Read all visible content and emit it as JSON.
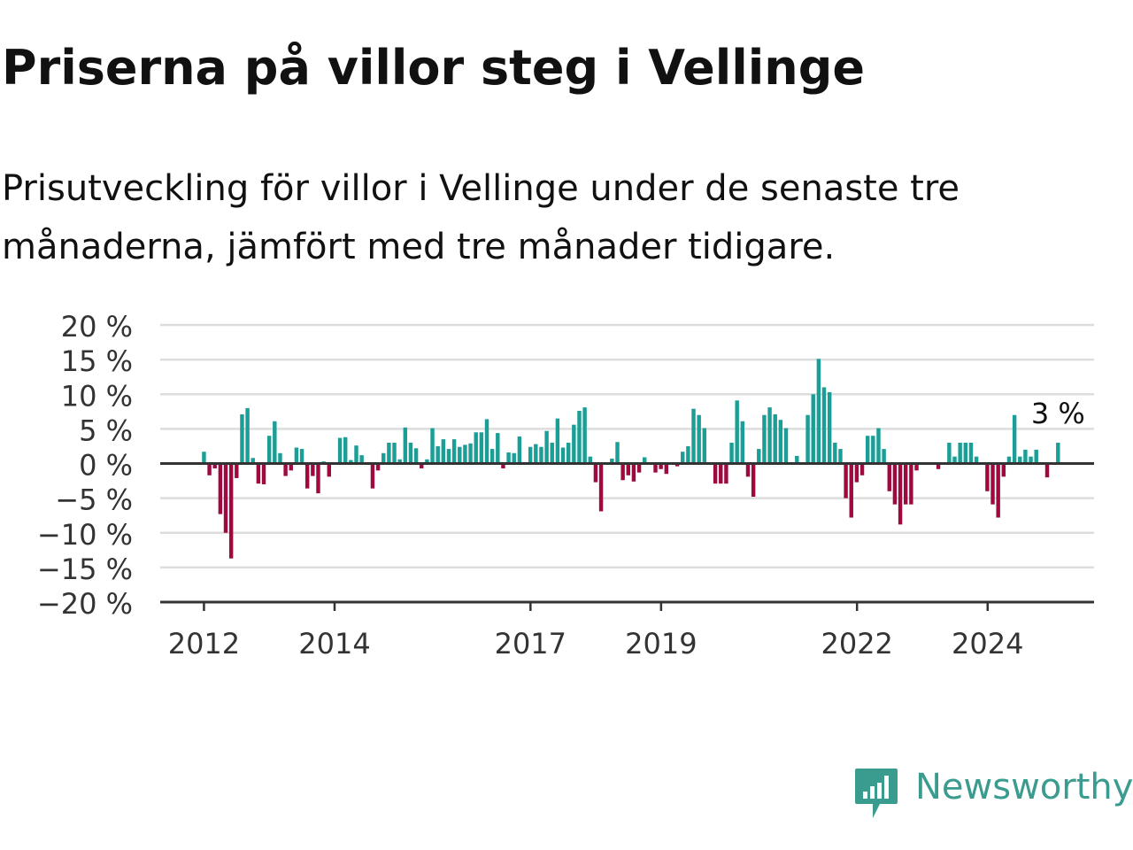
{
  "title": "Priserna på villor steg i Vellinge",
  "subtitle": "Prisutveckling för villor i Vellinge under de senaste tre månaderna, jämfört med tre månader tidigare.",
  "brand": {
    "name": "Newsworthy",
    "color": "#3a9c8f",
    "icon": "newsworthy-logo-icon"
  },
  "colors": {
    "positive": "#1a9e95",
    "negative": "#9e0a3f",
    "grid": "#dddddd",
    "axis": "#333333"
  },
  "chart_data": {
    "type": "bar",
    "y_ticks": [
      "20 %",
      "15 %",
      "10 %",
      "5 %",
      "0 %",
      "−5 %",
      "−10 %",
      "−15 %",
      "−20 %"
    ],
    "x_ticks": [
      {
        "label": "2012",
        "x": 2012
      },
      {
        "label": "2014",
        "x": 2014
      },
      {
        "label": "2017",
        "x": 2017
      },
      {
        "label": "2019",
        "x": 2019
      },
      {
        "label": "2022",
        "x": 2022
      },
      {
        "label": "2024",
        "x": 2024
      }
    ],
    "ylim": [
      -20,
      20
    ],
    "xlim": [
      2011.33,
      2025.63
    ],
    "x_start": 2012.0,
    "x_step": 0.0833,
    "annotation": {
      "label": "3 %",
      "value": 3
    },
    "values": [
      1.7,
      -1.7,
      -0.7,
      -7.3,
      -10.0,
      -13.7,
      -2.1,
      7.1,
      8.0,
      0.8,
      -2.9,
      -3.0,
      4.0,
      6.1,
      1.5,
      -1.8,
      -1.0,
      2.3,
      2.1,
      -3.6,
      -1.8,
      -4.3,
      0.3,
      -1.9,
      0.2,
      3.7,
      3.8,
      0.5,
      2.6,
      1.2,
      0,
      -3.6,
      -1.0,
      1.5,
      3.0,
      3.0,
      0.6,
      5.2,
      3.0,
      2.2,
      -0.7,
      0.6,
      5.1,
      2.5,
      3.5,
      2.1,
      3.5,
      2.4,
      2.7,
      2.9,
      4.5,
      4.5,
      6.4,
      2.1,
      4.4,
      -0.7,
      1.6,
      1.5,
      3.9,
      0.2,
      2.4,
      2.8,
      2.4,
      4.7,
      3.0,
      6.5,
      2.3,
      3.0,
      5.6,
      7.6,
      8.1,
      1.0,
      -2.7,
      -6.9,
      0,
      0.7,
      3.1,
      -2.4,
      -1.7,
      -2.6,
      -1.3,
      0.9,
      0,
      -1.3,
      -0.8,
      -1.5,
      0,
      -0.4,
      1.7,
      2.5,
      7.9,
      7.0,
      5.1,
      -0.1,
      -2.9,
      -2.9,
      -2.9,
      3.0,
      9.1,
      6.1,
      -1.9,
      -4.8,
      2.1,
      7.0,
      8.1,
      7.1,
      6.3,
      5.1,
      0,
      1.1,
      0,
      7.0,
      10.0,
      15.1,
      11.0,
      10.3,
      3.0,
      2.1,
      -5.0,
      -7.8,
      -2.7,
      -1.7,
      4.0,
      4.0,
      5.1,
      2.1,
      -4.0,
      -5.9,
      -8.8,
      -5.9,
      -5.9,
      -1.0,
      0,
      0,
      0,
      -0.8,
      0,
      3.0,
      1.0,
      3.0,
      3.0,
      3.0,
      1.0,
      0,
      -4.0,
      -5.9,
      -7.8,
      -1.9,
      1.0,
      7.0,
      1.0,
      2.0,
      1.0,
      2.0,
      0,
      -2.0,
      0,
      3.0
    ]
  }
}
